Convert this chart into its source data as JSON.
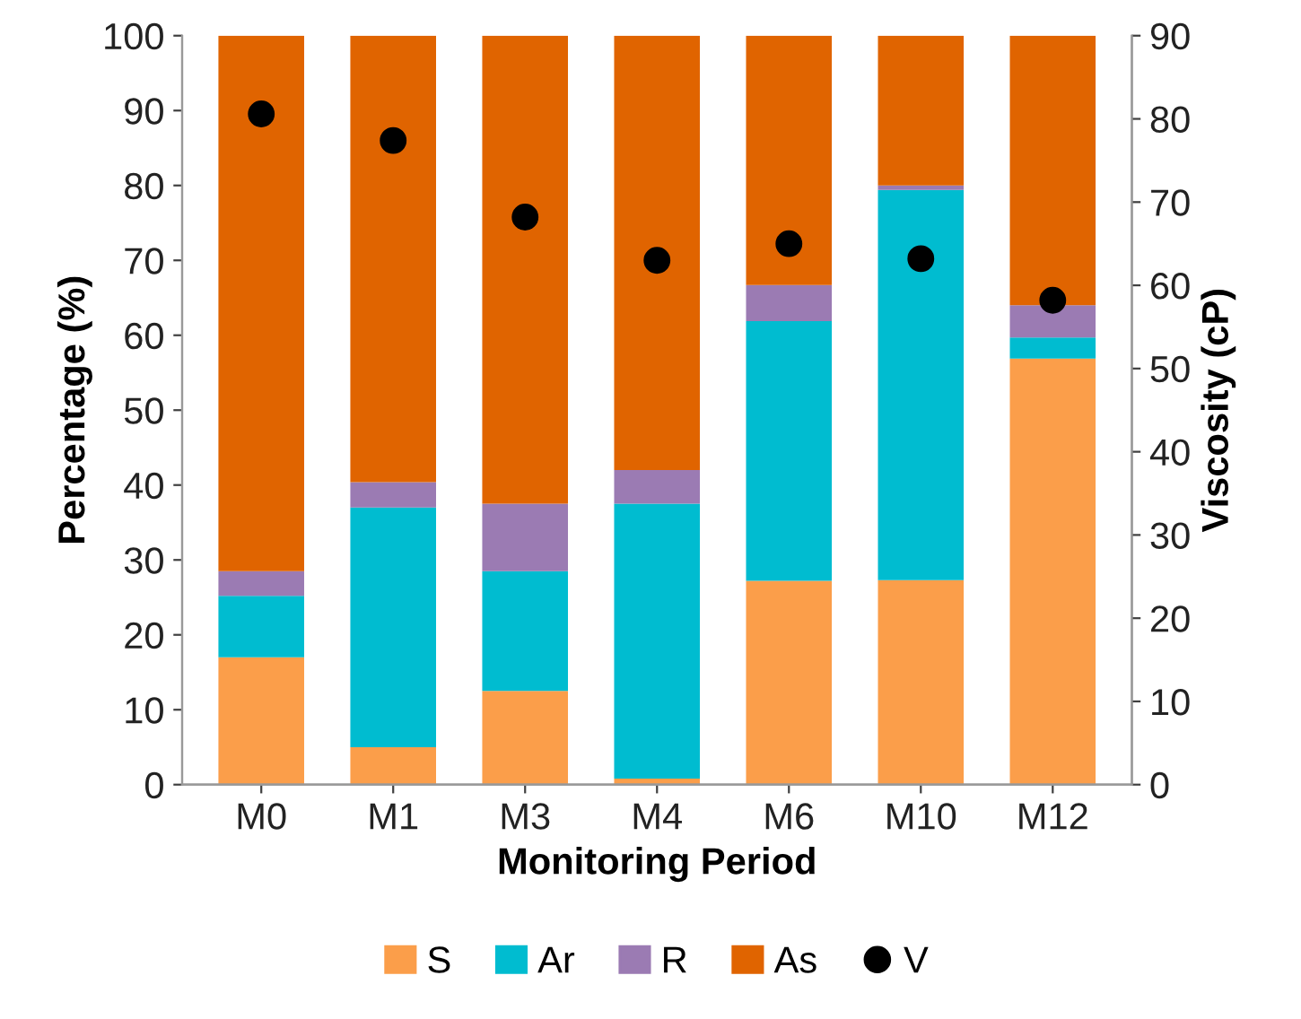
{
  "chart_data": {
    "type": "bar",
    "stacked": true,
    "xlabel": "Monitoring Period",
    "ylabel": "Percentage (%)",
    "y2label": "Viscosity (cP)",
    "categories": [
      "M0",
      "M1",
      "M3",
      "M4",
      "M6",
      "M10",
      "M12"
    ],
    "series": [
      {
        "name": "S",
        "color": "#fb9e4a",
        "values": [
          17,
          5,
          12.5,
          0.8,
          27.2,
          27.3,
          56.9
        ]
      },
      {
        "name": "Ar",
        "color": "#00bcd0",
        "values": [
          8.2,
          32,
          16,
          36.7,
          34.7,
          52.1,
          2.8
        ]
      },
      {
        "name": "R",
        "color": "#9b7bb3",
        "values": [
          3.3,
          3.4,
          9,
          4.5,
          4.8,
          0.6,
          4.3
        ]
      },
      {
        "name": "As",
        "color": "#e06400",
        "values": [
          71.5,
          59.6,
          62.5,
          58,
          33.3,
          20,
          36
        ]
      },
      {
        "name": "V",
        "type": "scatter",
        "axis": "y2",
        "color": "#000000",
        "marker": "circle",
        "values": [
          80.6,
          77.4,
          68.2,
          63,
          65,
          63.2,
          58.2
        ]
      }
    ],
    "ylim": [
      0,
      100
    ],
    "yticks": [
      0,
      10,
      20,
      30,
      40,
      50,
      60,
      70,
      80,
      90,
      100
    ],
    "y2lim": [
      0,
      90
    ],
    "y2ticks": [
      0,
      10,
      20,
      30,
      40,
      50,
      60,
      70,
      80,
      90
    ],
    "grid": false,
    "legend": "bottom"
  }
}
